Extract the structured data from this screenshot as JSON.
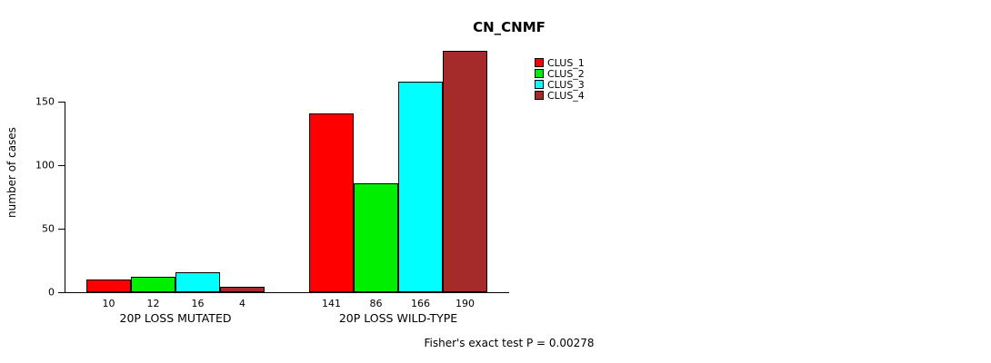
{
  "chart_data": {
    "type": "bar",
    "title": "CN_CNMF",
    "ylabel": "number of cases",
    "ylim": [
      0,
      190
    ],
    "yticks": [
      0,
      50,
      100,
      150
    ],
    "categories": [
      "20P LOSS MUTATED",
      "20P LOSS WILD-TYPE"
    ],
    "series": [
      {
        "name": "CLUS_1",
        "color": "#FF0000",
        "values": [
          10,
          141
        ]
      },
      {
        "name": "CLUS_2",
        "color": "#00EE00",
        "values": [
          12,
          86
        ]
      },
      {
        "name": "CLUS_3",
        "color": "#00FFFF",
        "values": [
          16,
          166
        ]
      },
      {
        "name": "CLUS_4",
        "color": "#A52A2A",
        "values": [
          4,
          190
        ]
      }
    ],
    "legend_position": "top-right",
    "grid": false,
    "footnote": "Fisher's exact test P = 0.00278"
  }
}
